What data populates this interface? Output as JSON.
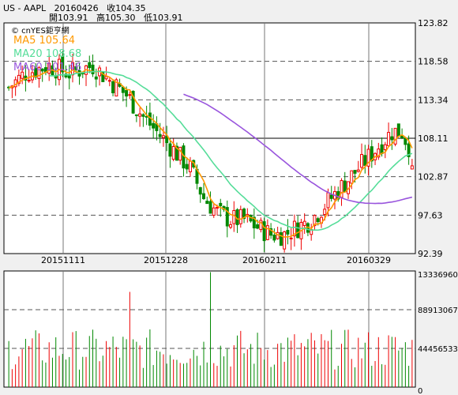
{
  "header": {
    "symbol": "US - AAPL",
    "date": "20160426",
    "close_label": "收104.35",
    "open_label": "開103.91",
    "high_label": "高105.30",
    "low_label": "低103.91"
  },
  "brand": "© cnYES鉅亨網",
  "legend": {
    "ma5": "MA5 105.64",
    "ma20": "MA20 108.68",
    "ma60 ": "MA60 101.46"
  },
  "colors": {
    "up": "#ee0000",
    "down": "#008800",
    "ma5": "#ff9900",
    "ma20": "#55dd99",
    "ma60": "#9955dd",
    "bg": "#ffffff"
  },
  "chart_data": [
    {
      "type": "candlestick",
      "title": "",
      "ylim": [
        92.39,
        123.82
      ],
      "y_ticks": [
        "123.82",
        "118.58",
        "113.34",
        "108.11",
        "102.87",
        "97.63",
        "92.39"
      ],
      "x_ticks": [
        "20151111",
        "20151228",
        "20160211",
        "20160329"
      ],
      "grid": true,
      "bar_count": 121,
      "last": {
        "date": "20160426",
        "open": 103.91,
        "high": 105.3,
        "low": 103.91,
        "close": 104.35
      },
      "ma_last": {
        "MA5": 105.64,
        "MA20": 108.68,
        "MA60": 101.46
      }
    },
    {
      "type": "bar",
      "title": "",
      "ylim": [
        0,
        133369600
      ],
      "y_ticks": [
        "133369600",
        "88913067",
        "44456533",
        "0"
      ]
    }
  ]
}
